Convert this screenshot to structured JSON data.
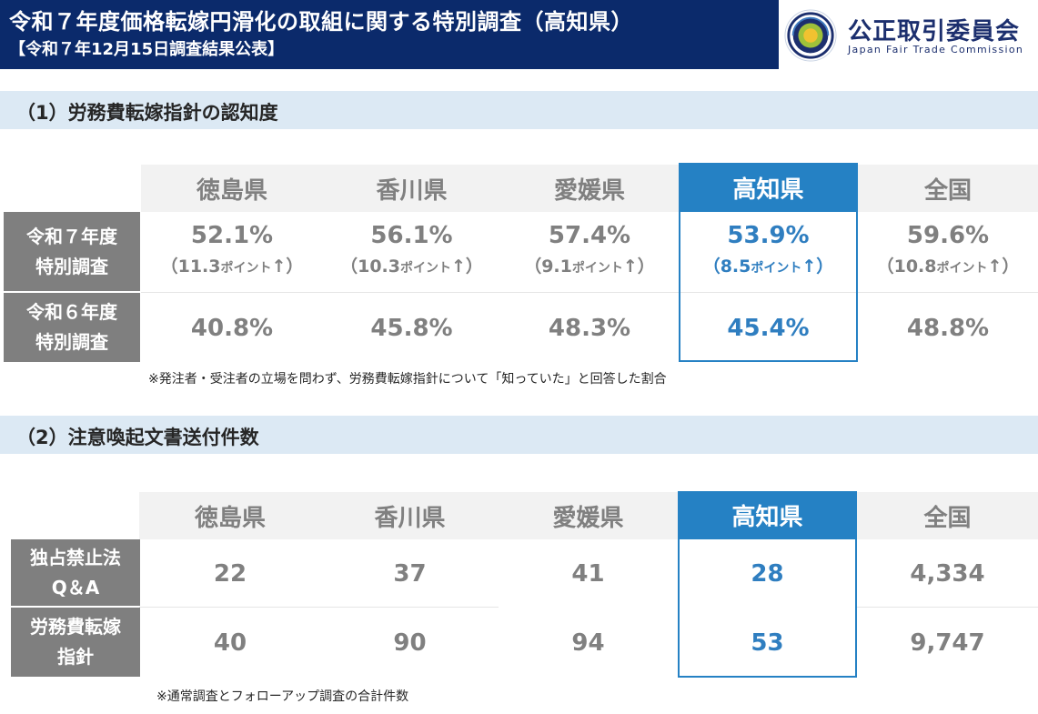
{
  "header": {
    "title": "令和７年度価格転嫁円滑化の取組に関する特別調査（高知県）",
    "subtitle": "【令和７年12月15日調査結果公表】",
    "logo_name": "公正取引委員会",
    "logo_en": "Japan Fair Trade Commission",
    "logo_ring_text": "JAPAN FAIR TRADE COMMISSION"
  },
  "section1": {
    "title": "（1）労務費転嫁指針の認知度",
    "columns": [
      "徳島県",
      "香川県",
      "愛媛県",
      "高知県",
      "全国"
    ],
    "rows": [
      {
        "label_lines": [
          "令和７年度",
          "特別調査"
        ],
        "cells": [
          {
            "value": "52.1%",
            "open": "（",
            "change": "11.3",
            "unit": "ポイント",
            "close": "↑）"
          },
          {
            "value": "56.1%",
            "open": "（",
            "change": "10.3",
            "unit": "ポイント",
            "close": "↑）"
          },
          {
            "value": "57.4%",
            "open": "（",
            "change": "9.1",
            "unit": "ポイント",
            "close": "↑）"
          },
          {
            "value": "53.9%",
            "open": "（",
            "change": "8.5",
            "unit": "ポイント",
            "close": "↑）"
          },
          {
            "value": "59.6%",
            "open": "（",
            "change": "10.8",
            "unit": "ポイント",
            "close": "↑）"
          }
        ]
      },
      {
        "label_lines": [
          "令和６年度",
          "特別調査"
        ],
        "cells": [
          "40.8%",
          "45.8%",
          "48.3%",
          "45.4%",
          "48.8%"
        ]
      }
    ],
    "note": "※発注者・受注者の立場を問わず、労務費転嫁指針について「知っていた」と回答した割合"
  },
  "section2": {
    "title": "（2）注意喚起文書送付件数",
    "columns": [
      "徳島県",
      "香川県",
      "愛媛県",
      "高知県",
      "全国"
    ],
    "rows": [
      {
        "label_lines": [
          "独占禁止法",
          "Q＆A"
        ],
        "cells": [
          "22",
          "37",
          "41",
          "28",
          "4,334"
        ]
      },
      {
        "label_lines": [
          "労務費転嫁",
          "指針"
        ],
        "cells": [
          "40",
          "90",
          "94",
          "53",
          "9,747"
        ]
      }
    ],
    "note": "※通常調査とフォローアップ調査の合計件数"
  },
  "colors": {
    "header_bg": "#0b2a6b",
    "section_bg": "#dce9f4",
    "highlight": "#2581c4",
    "highlight_text": "#2f7ec0",
    "row_header_bg": "#7f7f7f",
    "col_header_bg": "#f2f2f2"
  },
  "highlight_column_index": 3
}
